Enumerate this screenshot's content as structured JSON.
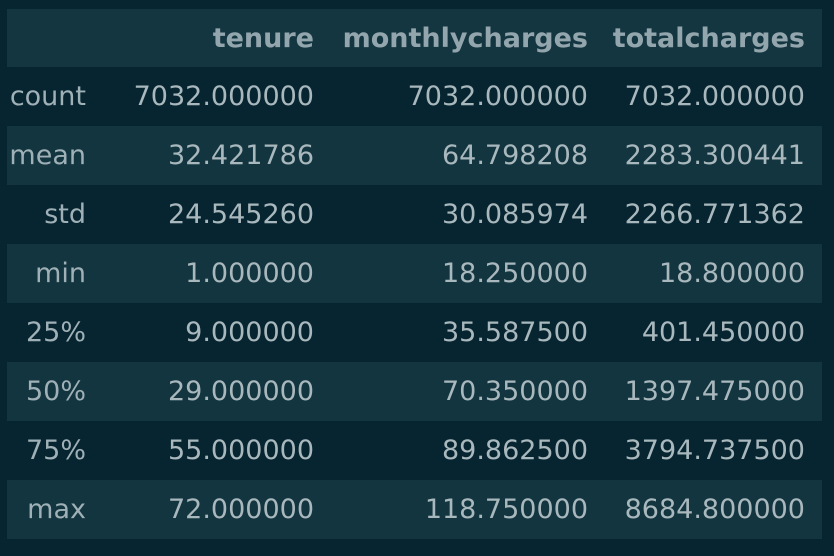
{
  "table": {
    "index_header": "",
    "columns": [
      "tenure",
      "monthlycharges",
      "totalcharges"
    ],
    "rows": [
      {
        "label": "count",
        "values": [
          "7032.000000",
          "7032.000000",
          "7032.000000"
        ]
      },
      {
        "label": "mean",
        "values": [
          "32.421786",
          "64.798208",
          "2283.300441"
        ]
      },
      {
        "label": "std",
        "values": [
          "24.545260",
          "30.085974",
          "2266.771362"
        ]
      },
      {
        "label": "min",
        "values": [
          "1.000000",
          "18.250000",
          "18.800000"
        ]
      },
      {
        "label": "25%",
        "values": [
          "9.000000",
          "35.587500",
          "401.450000"
        ]
      },
      {
        "label": "50%",
        "values": [
          "29.000000",
          "70.350000",
          "1397.475000"
        ]
      },
      {
        "label": "75%",
        "values": [
          "55.000000",
          "89.862500",
          "3794.737500"
        ]
      },
      {
        "label": "max",
        "values": [
          "72.000000",
          "118.750000",
          "8684.800000"
        ]
      }
    ]
  }
}
